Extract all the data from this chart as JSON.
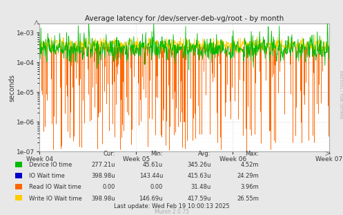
{
  "title": "Average latency for /dev/server-deb-vg/root - by month",
  "ylabel": "seconds",
  "xlabel_ticks": [
    "Week 04",
    "Week 05",
    "Week 06",
    "Week 07"
  ],
  "ylim_log": [
    1e-07,
    0.002
  ],
  "background_color": "#e8e8e8",
  "plot_bg_color": "#ffffff",
  "grid_color": "#aaaaaa",
  "title_color": "#222222",
  "legend": [
    {
      "label": "Device IO time",
      "color": "#00bb00"
    },
    {
      "label": "IO Wait time",
      "color": "#0000cc"
    },
    {
      "label": "Read IO Wait time",
      "color": "#ff6600"
    },
    {
      "label": "Write IO Wait time",
      "color": "#ffcc00"
    }
  ],
  "table_headers": [
    "Cur:",
    "Min:",
    "Avg:",
    "Max:"
  ],
  "table_rows": [
    [
      "Device IO time",
      "277.21u",
      "45.61u",
      "345.26u",
      "4.52m"
    ],
    [
      "IO Wait time",
      "398.98u",
      "143.44u",
      "415.63u",
      "24.29m"
    ],
    [
      "Read IO Wait time",
      "0.00",
      "0.00",
      "31.48u",
      "3.96m"
    ],
    [
      "Write IO Wait time",
      "398.98u",
      "146.69u",
      "417.59u",
      "26.55m"
    ]
  ],
  "last_update": "Last update: Wed Feb 19 10:00:13 2025",
  "munin_label": "Munin 2.0.75",
  "rrdtool_label": "RRDTOOL / TOBI OETIKER",
  "n_points": 800
}
